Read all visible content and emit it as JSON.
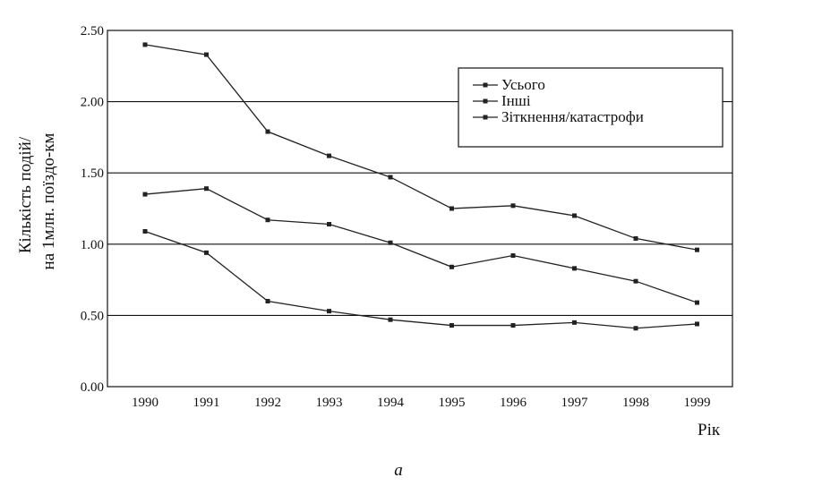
{
  "chart_data": {
    "type": "line",
    "x": [
      "1990",
      "1991",
      "1992",
      "1993",
      "1994",
      "1995",
      "1996",
      "1997",
      "1998",
      "1999"
    ],
    "series": [
      {
        "name": "Усього",
        "values": [
          2.4,
          2.33,
          1.79,
          1.62,
          1.47,
          1.25,
          1.27,
          1.2,
          1.04,
          0.96
        ]
      },
      {
        "name": "Інші",
        "values": [
          1.35,
          1.39,
          1.17,
          1.14,
          1.01,
          0.84,
          0.92,
          0.83,
          0.74,
          0.59
        ]
      },
      {
        "name": "Зіткнення/катастрофи",
        "values": [
          1.09,
          0.94,
          0.6,
          0.53,
          0.47,
          0.43,
          0.43,
          0.45,
          0.41,
          0.44
        ]
      }
    ],
    "yticks": [
      "0.00",
      "0.50",
      "1.00",
      "1.50",
      "2.00",
      "2.50"
    ],
    "ylim": [
      0,
      2.5
    ],
    "ylabel_line1": "Кількість подій/",
    "ylabel_line2": "на 1млн. поїздо-км",
    "xlabel": "Рік",
    "grid": "horizontal",
    "legend_position": "top-right",
    "caption": "a",
    "line_color": "#222222"
  }
}
